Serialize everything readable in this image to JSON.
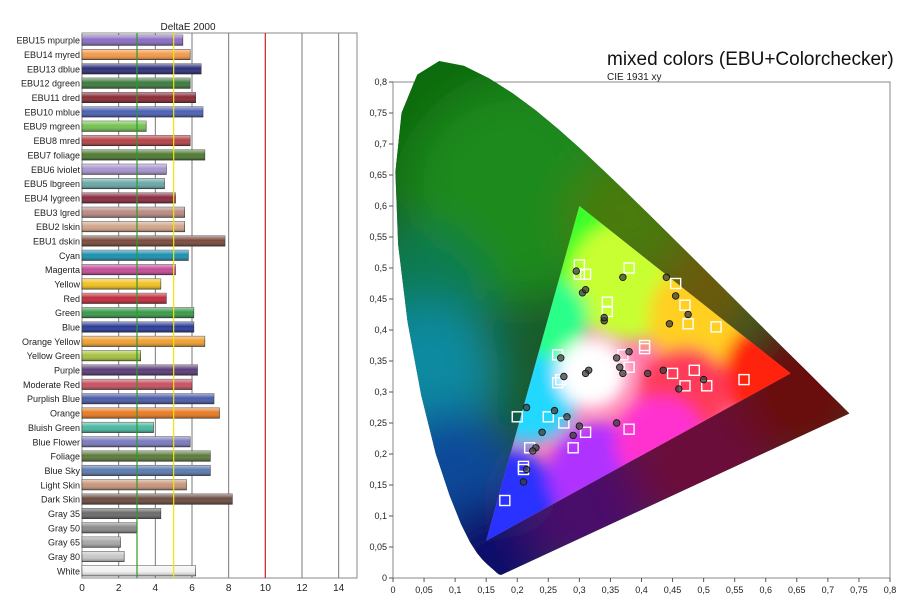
{
  "chart_data": [
    {
      "type": "bar",
      "title": "DeltaE 2000",
      "xlim": [
        0,
        15
      ],
      "x_ticks": [
        0,
        2,
        4,
        6,
        8,
        10,
        12,
        14
      ],
      "reference_lines": [
        {
          "value": 3,
          "color": "#2e9a2e"
        },
        {
          "value": 5,
          "color": "#f2e600"
        },
        {
          "value": 10,
          "color": "#d92b2b"
        }
      ],
      "grid": true,
      "categories": [
        "EBU15 mpurple",
        "EBU14 myred",
        "EBU13 dblue",
        "EBU12 dgreen",
        "EBU11 dred",
        "EBU10 mblue",
        "EBU9 mgreen",
        "EBU8 mred",
        "EBU7 foliage",
        "EBU6 lviolet",
        "EBU5 lbgreen",
        "EBU4 lygreen",
        "EBU3 lgred",
        "EBU2 lskin",
        "EBU1 dskin",
        "Cyan",
        "Magenta",
        "Yellow",
        "Red",
        "Green",
        "Blue",
        "Orange Yellow",
        "Yellow Green",
        "Purple",
        "Moderate Red",
        "Purplish Blue",
        "Orange",
        "Bluish Green",
        "Blue Flower",
        "Foliage",
        "Blue Sky",
        "Light Skin",
        "Dark Skin",
        "Gray 35",
        "Gray 50",
        "Gray 65",
        "Gray 80",
        "White"
      ],
      "values": [
        5.5,
        5.9,
        6.5,
        5.9,
        6.2,
        6.6,
        3.5,
        5.9,
        6.7,
        4.6,
        4.5,
        5.1,
        5.6,
        5.6,
        7.8,
        5.8,
        5.1,
        4.3,
        4.6,
        6.1,
        6.1,
        6.7,
        3.2,
        6.3,
        6.0,
        7.2,
        7.5,
        3.9,
        5.9,
        7.0,
        7.0,
        5.7,
        8.2,
        4.3,
        3.0,
        2.1,
        2.3,
        6.2
      ],
      "colors": [
        "#8a6cc4",
        "#f59a4a",
        "#2c2f78",
        "#3c7a3c",
        "#8a2a33",
        "#4b5fb5",
        "#72c24e",
        "#b54246",
        "#4e7a32",
        "#a894cf",
        "#6aa8a8",
        "#8a2a40",
        "#b98a82",
        "#d3a58a",
        "#7a4a3c",
        "#1a90b0",
        "#c44a98",
        "#f2c21e",
        "#c22a3a",
        "#3a9a4a",
        "#2a3a96",
        "#f0a030",
        "#a8c23e",
        "#5a3a7a",
        "#c85060",
        "#4a5aa8",
        "#e87a22",
        "#4ab8a0",
        "#7a7ac0",
        "#5a7a3a",
        "#5a7ab0",
        "#c8967a",
        "#6a4a3e",
        "#6a6a6a",
        "#8a8a8a",
        "#a8a8a8",
        "#c8c8c8",
        "#f2f2f2"
      ]
    },
    {
      "type": "scatter",
      "title": "mixed colors (EBU+Colorchecker)",
      "subtitle": "CIE 1931 xy",
      "xlim": [
        0,
        0.8
      ],
      "ylim": [
        0,
        0.8
      ],
      "x_ticks": [
        0,
        0.05,
        0.1,
        0.15,
        0.2,
        0.25,
        0.3,
        0.35,
        0.4,
        0.45,
        0.5,
        0.55,
        0.6,
        0.65,
        0.7,
        0.75,
        0.8
      ],
      "y_ticks": [
        0,
        0.05,
        0.1,
        0.15,
        0.2,
        0.25,
        0.3,
        0.35,
        0.4,
        0.45,
        0.5,
        0.55,
        0.6,
        0.65,
        0.7,
        0.75,
        0.8
      ],
      "x_tick_labels": [
        "0",
        "0,05",
        "0,1",
        "0,15",
        "0,2",
        "0,25",
        "0,3",
        "0,35",
        "0,4",
        "0,45",
        "0,5",
        "0,55",
        "0,6",
        "0,65",
        "0,7",
        "0,75",
        "0,8"
      ],
      "y_tick_labels": [
        "0",
        "0,05",
        "0,1",
        "0,15",
        "0,2",
        "0,25",
        "0,3",
        "0,35",
        "0,4",
        "0,45",
        "0,5",
        "0,55",
        "0,6",
        "0,65",
        "0,7",
        "0,75",
        "0,8"
      ],
      "gamut_triangle": [
        [
          0.64,
          0.33
        ],
        [
          0.3,
          0.6
        ],
        [
          0.15,
          0.06
        ]
      ],
      "targets": [
        [
          0.3,
          0.505
        ],
        [
          0.3,
          0.49
        ],
        [
          0.31,
          0.49
        ],
        [
          0.38,
          0.5
        ],
        [
          0.345,
          0.445
        ],
        [
          0.345,
          0.43
        ],
        [
          0.455,
          0.475
        ],
        [
          0.47,
          0.44
        ],
        [
          0.475,
          0.41
        ],
        [
          0.52,
          0.405
        ],
        [
          0.37,
          0.36
        ],
        [
          0.405,
          0.37
        ],
        [
          0.405,
          0.375
        ],
        [
          0.38,
          0.34
        ],
        [
          0.45,
          0.33
        ],
        [
          0.485,
          0.335
        ],
        [
          0.47,
          0.31
        ],
        [
          0.505,
          0.31
        ],
        [
          0.565,
          0.32
        ],
        [
          0.265,
          0.36
        ],
        [
          0.27,
          0.32
        ],
        [
          0.265,
          0.315
        ],
        [
          0.31,
          0.33
        ],
        [
          0.31,
          0.325
        ],
        [
          0.2,
          0.26
        ],
        [
          0.25,
          0.26
        ],
        [
          0.275,
          0.25
        ],
        [
          0.31,
          0.235
        ],
        [
          0.38,
          0.24
        ],
        [
          0.22,
          0.21
        ],
        [
          0.29,
          0.21
        ],
        [
          0.21,
          0.175
        ],
        [
          0.21,
          0.18
        ],
        [
          0.18,
          0.125
        ]
      ],
      "measured": [
        [
          0.295,
          0.495
        ],
        [
          0.305,
          0.46
        ],
        [
          0.31,
          0.465
        ],
        [
          0.37,
          0.485
        ],
        [
          0.34,
          0.415
        ],
        [
          0.34,
          0.42
        ],
        [
          0.44,
          0.485
        ],
        [
          0.455,
          0.455
        ],
        [
          0.475,
          0.425
        ],
        [
          0.445,
          0.41
        ],
        [
          0.38,
          0.365
        ],
        [
          0.36,
          0.355
        ],
        [
          0.365,
          0.34
        ],
        [
          0.37,
          0.33
        ],
        [
          0.41,
          0.33
        ],
        [
          0.435,
          0.335
        ],
        [
          0.46,
          0.305
        ],
        [
          0.5,
          0.32
        ],
        [
          0.27,
          0.355
        ],
        [
          0.275,
          0.325
        ],
        [
          0.315,
          0.335
        ],
        [
          0.31,
          0.33
        ],
        [
          0.215,
          0.275
        ],
        [
          0.26,
          0.27
        ],
        [
          0.28,
          0.26
        ],
        [
          0.29,
          0.23
        ],
        [
          0.3,
          0.245
        ],
        [
          0.36,
          0.25
        ],
        [
          0.23,
          0.21
        ],
        [
          0.24,
          0.235
        ],
        [
          0.225,
          0.205
        ],
        [
          0.21,
          0.155
        ],
        [
          0.215,
          0.175
        ]
      ]
    }
  ]
}
